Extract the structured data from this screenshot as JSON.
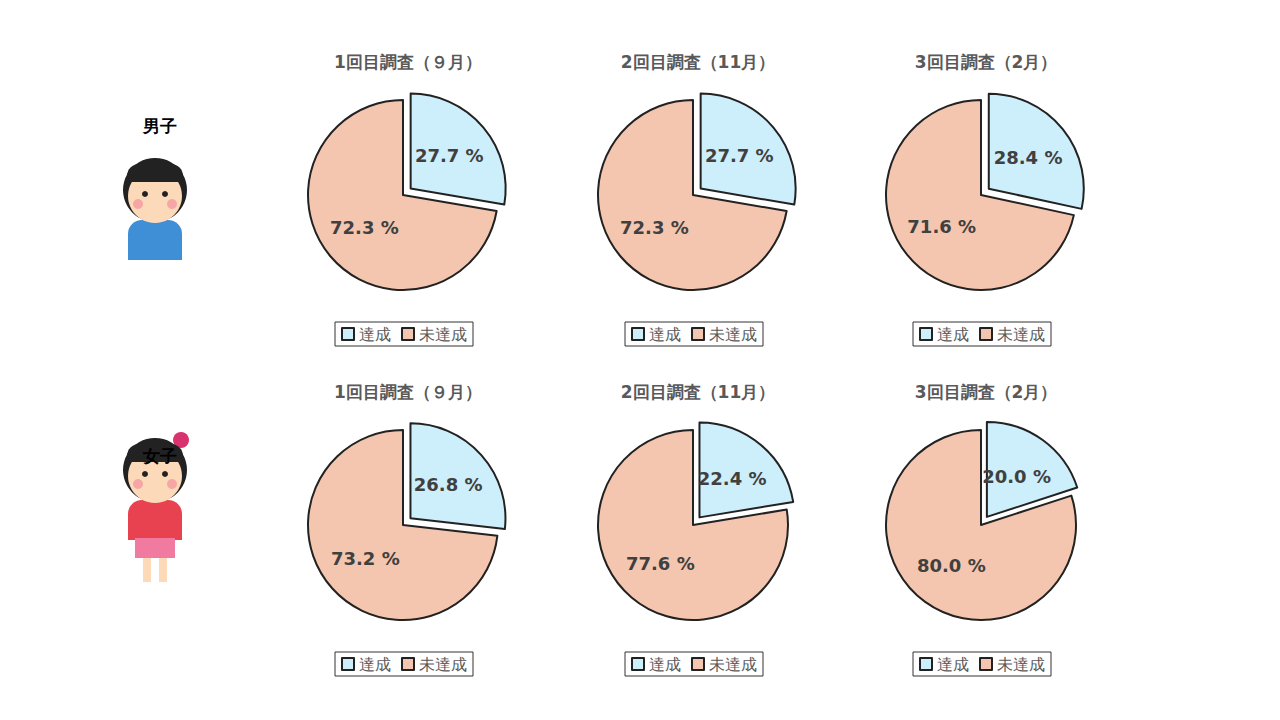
{
  "row_labels": [
    "男子",
    "女子"
  ],
  "chart_data": [
    {
      "type": "pie",
      "title": "1回目調査（９月）",
      "categories": [
        "達成",
        "未達成"
      ],
      "values": [
        27.7,
        72.3
      ],
      "value_labels": [
        "27.7 %",
        "72.3 %"
      ],
      "colors": [
        "#CDEFFB",
        "#F5C6AF"
      ],
      "legend": "bottom",
      "data_labels": true
    },
    {
      "type": "pie",
      "title": "2回目調査（11月）",
      "categories": [
        "達成",
        "未達成"
      ],
      "values": [
        27.7,
        72.3
      ],
      "value_labels": [
        "27.7 %",
        "72.3 %"
      ],
      "colors": [
        "#CDEFFB",
        "#F5C6AF"
      ],
      "legend": "bottom",
      "data_labels": true
    },
    {
      "type": "pie",
      "title": "3回目調査（2月）",
      "categories": [
        "達成",
        "未達成"
      ],
      "values": [
        28.4,
        71.6
      ],
      "value_labels": [
        "28.4 %",
        "71.6 %"
      ],
      "colors": [
        "#CDEFFB",
        "#F5C6AF"
      ],
      "legend": "bottom",
      "data_labels": true
    },
    {
      "type": "pie",
      "title": "1回目調査（９月）",
      "categories": [
        "達成",
        "未達成"
      ],
      "values": [
        26.8,
        73.2
      ],
      "value_labels": [
        "26.8 %",
        "73.2 %"
      ],
      "colors": [
        "#CDEFFB",
        "#F5C6AF"
      ],
      "legend": "bottom",
      "data_labels": true
    },
    {
      "type": "pie",
      "title": "2回目調査（11月）",
      "categories": [
        "達成",
        "未達成"
      ],
      "values": [
        22.4,
        77.6
      ],
      "value_labels": [
        "22.4 %",
        "77.6 %"
      ],
      "colors": [
        "#CDEFFB",
        "#F5C6AF"
      ],
      "legend": "bottom",
      "data_labels": true
    },
    {
      "type": "pie",
      "title": "3回目調査（2月）",
      "categories": [
        "達成",
        "未達成"
      ],
      "values": [
        20.0,
        80.0
      ],
      "value_labels": [
        "20.0 %",
        "80.0 %"
      ],
      "colors": [
        "#CDEFFB",
        "#F5C6AF"
      ],
      "legend": "bottom",
      "data_labels": true
    }
  ]
}
